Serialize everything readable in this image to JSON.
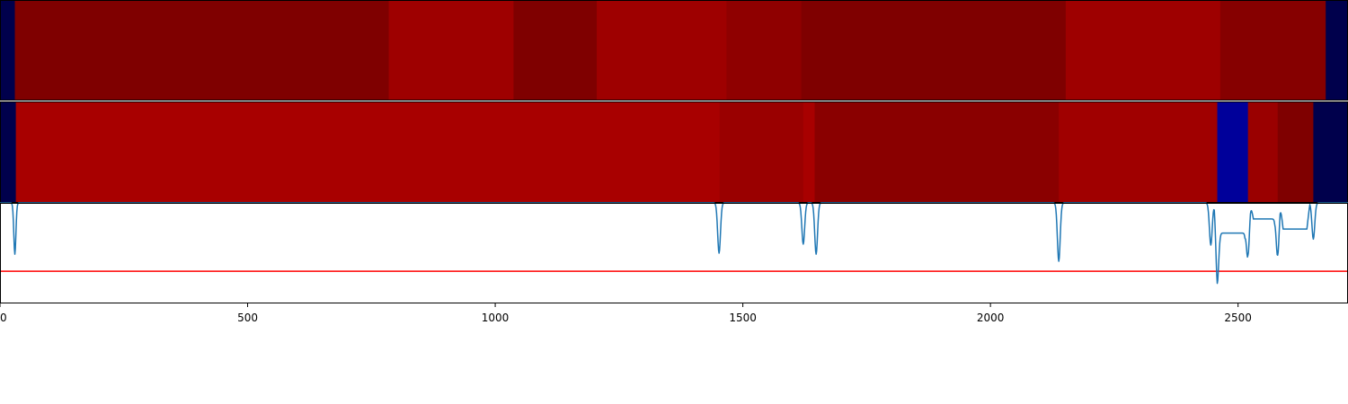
{
  "chart_data": [
    {
      "type": "heatmap",
      "xlim": [
        0,
        2722
      ],
      "colormap": "seismic",
      "segments": [
        {
          "start": 0,
          "end": 30,
          "color": "#00004c"
        },
        {
          "start": 30,
          "end": 785,
          "color": "#7f0000"
        },
        {
          "start": 785,
          "end": 1037,
          "color": "#9e0000"
        },
        {
          "start": 1037,
          "end": 1205,
          "color": "#7f0000"
        },
        {
          "start": 1205,
          "end": 1467,
          "color": "#9e0000"
        },
        {
          "start": 1467,
          "end": 1618,
          "color": "#8f0000"
        },
        {
          "start": 1618,
          "end": 2152,
          "color": "#7f0000"
        },
        {
          "start": 2152,
          "end": 2464,
          "color": "#9e0000"
        },
        {
          "start": 2464,
          "end": 2677,
          "color": "#860000"
        },
        {
          "start": 2677,
          "end": 2722,
          "color": "#00004c"
        }
      ]
    },
    {
      "type": "heatmap",
      "xlim": [
        0,
        2722
      ],
      "colormap": "seismic",
      "segments": [
        {
          "start": 0,
          "end": 32,
          "color": "#00004c"
        },
        {
          "start": 32,
          "end": 1453,
          "color": "#a80000"
        },
        {
          "start": 1453,
          "end": 1622,
          "color": "#9a0000"
        },
        {
          "start": 1622,
          "end": 1645,
          "color": "#a80000"
        },
        {
          "start": 1645,
          "end": 2138,
          "color": "#8a0000"
        },
        {
          "start": 2138,
          "end": 2458,
          "color": "#a00000"
        },
        {
          "start": 2458,
          "end": 2520,
          "color": "#00009a"
        },
        {
          "start": 2520,
          "end": 2580,
          "color": "#9a0000"
        },
        {
          "start": 2580,
          "end": 2652,
          "color": "#7f0000"
        },
        {
          "start": 2652,
          "end": 2722,
          "color": "#00004c"
        }
      ]
    },
    {
      "type": "line",
      "xlim": [
        0,
        2722
      ],
      "ylim": [
        0,
        1
      ],
      "x_ticks": [
        "0",
        "500",
        "1000",
        "1500",
        "2000",
        "2500"
      ],
      "x_tick_values": [
        0,
        500,
        1000,
        1500,
        2000,
        2500
      ],
      "series_color": "#1f77b4",
      "baseline_value": 1.0,
      "dips": [
        {
          "x": 30,
          "depth": 0.49,
          "width": 3
        },
        {
          "x": 1452,
          "depth": 0.5,
          "width": 4
        },
        {
          "x": 1622,
          "depth": 0.59,
          "width": 4
        },
        {
          "x": 1648,
          "depth": 0.49,
          "width": 4
        },
        {
          "x": 2138,
          "depth": 0.42,
          "width": 4
        },
        {
          "x": 2445,
          "depth": 0.58,
          "width": 4
        },
        {
          "x": 2458,
          "depth": 0.5,
          "width": 4
        },
        {
          "x": 2520,
          "depth": 0.48,
          "width": 4
        },
        {
          "x": 2580,
          "depth": 0.48,
          "width": 4
        },
        {
          "x": 2652,
          "depth": 0.64,
          "width": 4
        }
      ],
      "plateaus": [
        {
          "start": 2452,
          "end": 2520,
          "level": 0.7
        },
        {
          "start": 2525,
          "end": 2580,
          "level": 0.84
        },
        {
          "start": 2585,
          "end": 2645,
          "level": 0.74
        }
      ],
      "threshold": {
        "value": 0.32,
        "color": "#ff0000"
      }
    }
  ]
}
